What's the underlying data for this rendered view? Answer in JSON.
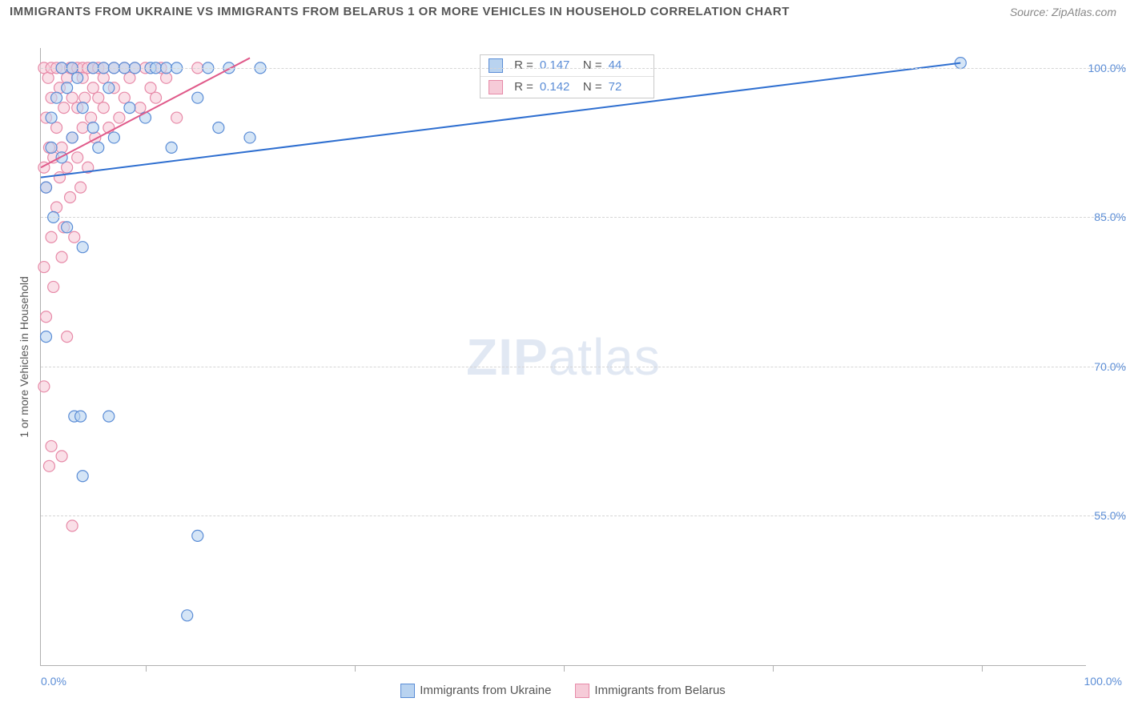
{
  "title": "IMMIGRANTS FROM UKRAINE VS IMMIGRANTS FROM BELARUS 1 OR MORE VEHICLES IN HOUSEHOLD CORRELATION CHART",
  "source": "Source: ZipAtlas.com",
  "watermark_bold": "ZIP",
  "watermark_rest": "atlas",
  "y_axis_title": "1 or more Vehicles in Household",
  "x_min_label": "0.0%",
  "x_max_label": "100.0%",
  "colors": {
    "series1_fill": "#b9d3f0",
    "series1_stroke": "#5b8dd6",
    "series2_fill": "#f6cbd8",
    "series2_stroke": "#e78aa8",
    "line1": "#2f6fd0",
    "line2": "#e05a8a",
    "grid": "#d5d5d5",
    "axis": "#b0b0b0",
    "text": "#555555",
    "value_text": "#5b8dd6"
  },
  "chart": {
    "type": "scatter",
    "xlim": [
      0,
      100
    ],
    "ylim": [
      40,
      102
    ],
    "marker_radius": 7,
    "marker_opacity": 0.6,
    "y_ticks": [
      {
        "v": 100,
        "label": "100.0%"
      },
      {
        "v": 85,
        "label": "85.0%"
      },
      {
        "v": 70,
        "label": "70.0%"
      },
      {
        "v": 55,
        "label": "55.0%"
      }
    ],
    "x_tick_pos": [
      10,
      30,
      50,
      70,
      90
    ],
    "watermark_fontsize": 64
  },
  "stat_legend": {
    "left_pct": 42,
    "top_pct": 1,
    "rows": [
      {
        "swatch": "series1",
        "r": "0.147",
        "n": "44"
      },
      {
        "swatch": "series2",
        "r": "0.142",
        "n": "72"
      }
    ]
  },
  "bottom_legend": [
    {
      "swatch": "series1",
      "label": "Immigrants from Ukraine"
    },
    {
      "swatch": "series2",
      "label": "Immigrants from Belarus"
    }
  ],
  "trend_lines": {
    "line1": {
      "x1": 0,
      "y1": 89,
      "x2": 88,
      "y2": 100.5
    },
    "line2": {
      "x1": 0,
      "y1": 90,
      "x2": 20,
      "y2": 101
    }
  },
  "series1_points": [
    [
      0.5,
      88
    ],
    [
      0.5,
      73
    ],
    [
      1,
      95
    ],
    [
      1,
      92
    ],
    [
      1.2,
      85
    ],
    [
      1.5,
      97
    ],
    [
      2,
      100
    ],
    [
      2,
      91
    ],
    [
      2.5,
      98
    ],
    [
      2.5,
      84
    ],
    [
      3,
      100
    ],
    [
      3,
      93
    ],
    [
      3.2,
      65
    ],
    [
      3.5,
      99
    ],
    [
      3.8,
      65
    ],
    [
      4,
      96
    ],
    [
      4,
      59
    ],
    [
      4,
      82
    ],
    [
      5,
      100
    ],
    [
      5,
      94
    ],
    [
      5.5,
      92
    ],
    [
      6,
      100
    ],
    [
      6.5,
      98
    ],
    [
      6.5,
      65
    ],
    [
      7,
      100
    ],
    [
      7,
      93
    ],
    [
      8,
      100
    ],
    [
      8.5,
      96
    ],
    [
      9,
      100
    ],
    [
      10,
      95
    ],
    [
      10.5,
      100
    ],
    [
      11,
      100
    ],
    [
      12,
      100
    ],
    [
      12.5,
      92
    ],
    [
      13,
      100
    ],
    [
      14,
      45
    ],
    [
      15,
      97
    ],
    [
      15,
      53
    ],
    [
      16,
      100
    ],
    [
      17,
      94
    ],
    [
      18,
      100
    ],
    [
      20,
      93
    ],
    [
      21,
      100
    ],
    [
      88,
      100.5
    ]
  ],
  "series2_points": [
    [
      0.3,
      90
    ],
    [
      0.3,
      100
    ],
    [
      0.3,
      80
    ],
    [
      0.3,
      68
    ],
    [
      0.5,
      75
    ],
    [
      0.5,
      95
    ],
    [
      0.5,
      88
    ],
    [
      0.7,
      99
    ],
    [
      0.8,
      60
    ],
    [
      0.8,
      92
    ],
    [
      1,
      100
    ],
    [
      1,
      97
    ],
    [
      1,
      83
    ],
    [
      1,
      62
    ],
    [
      1.2,
      78
    ],
    [
      1.2,
      91
    ],
    [
      1.5,
      86
    ],
    [
      1.5,
      100
    ],
    [
      1.5,
      94
    ],
    [
      1.8,
      98
    ],
    [
      1.8,
      89
    ],
    [
      2,
      100
    ],
    [
      2,
      92
    ],
    [
      2,
      81
    ],
    [
      2,
      61
    ],
    [
      2.2,
      96
    ],
    [
      2.2,
      84
    ],
    [
      2.5,
      99
    ],
    [
      2.5,
      90
    ],
    [
      2.5,
      73
    ],
    [
      2.8,
      100
    ],
    [
      2.8,
      87
    ],
    [
      3,
      97
    ],
    [
      3,
      93
    ],
    [
      3,
      100
    ],
    [
      3,
      54
    ],
    [
      3.2,
      83
    ],
    [
      3.5,
      100
    ],
    [
      3.5,
      91
    ],
    [
      3.5,
      96
    ],
    [
      3.8,
      88
    ],
    [
      4,
      100
    ],
    [
      4,
      94
    ],
    [
      4,
      99
    ],
    [
      4.2,
      97
    ],
    [
      4.5,
      100
    ],
    [
      4.5,
      90
    ],
    [
      4.8,
      95
    ],
    [
      5,
      100
    ],
    [
      5,
      98
    ],
    [
      5.2,
      93
    ],
    [
      5.5,
      100
    ],
    [
      5.5,
      97
    ],
    [
      6,
      99
    ],
    [
      6,
      100
    ],
    [
      6,
      96
    ],
    [
      6.5,
      94
    ],
    [
      7,
      100
    ],
    [
      7,
      98
    ],
    [
      7.5,
      95
    ],
    [
      8,
      100
    ],
    [
      8,
      97
    ],
    [
      8.5,
      99
    ],
    [
      9,
      100
    ],
    [
      9.5,
      96
    ],
    [
      10,
      100
    ],
    [
      10.5,
      98
    ],
    [
      11,
      97
    ],
    [
      11.5,
      100
    ],
    [
      12,
      99
    ],
    [
      13,
      95
    ],
    [
      15,
      100
    ]
  ]
}
